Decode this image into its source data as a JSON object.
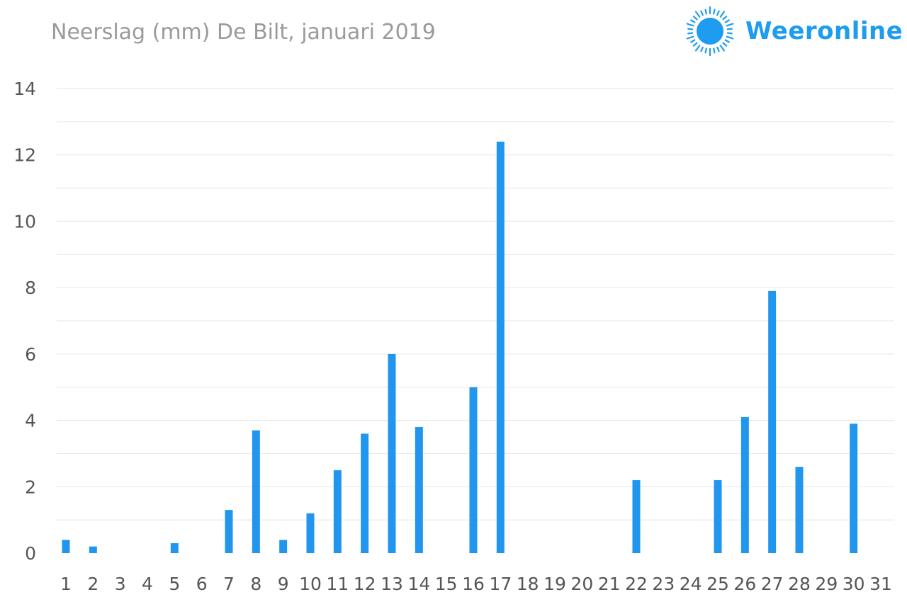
{
  "header": {
    "title": "Neerslag (mm) De Bilt, januari 2019"
  },
  "brand": {
    "name": "Weeronline",
    "icon": "sun-logo-icon",
    "color": "#1e9cf0"
  },
  "chart_data": {
    "type": "bar",
    "title": "Neerslag (mm) De Bilt, januari 2019",
    "xlabel": "",
    "ylabel": "",
    "ylim": [
      0,
      14
    ],
    "yticks": [
      0,
      2,
      4,
      6,
      8,
      10,
      12,
      14
    ],
    "grid": true,
    "bar_color": "#2196ee",
    "grid_color": "#e6e6e6",
    "categories": [
      "1",
      "2",
      "3",
      "4",
      "5",
      "6",
      "7",
      "8",
      "9",
      "10",
      "11",
      "12",
      "13",
      "14",
      "15",
      "16",
      "17",
      "18",
      "19",
      "20",
      "21",
      "22",
      "23",
      "24",
      "25",
      "26",
      "27",
      "28",
      "29",
      "30",
      "31"
    ],
    "values": [
      0.4,
      0.2,
      0,
      0,
      0.3,
      0,
      1.3,
      3.7,
      0.4,
      1.2,
      2.5,
      3.6,
      6.0,
      3.8,
      0,
      5.0,
      12.4,
      0,
      0,
      0,
      0,
      2.2,
      0,
      0,
      2.2,
      4.1,
      7.9,
      2.6,
      0,
      3.9,
      0
    ]
  }
}
